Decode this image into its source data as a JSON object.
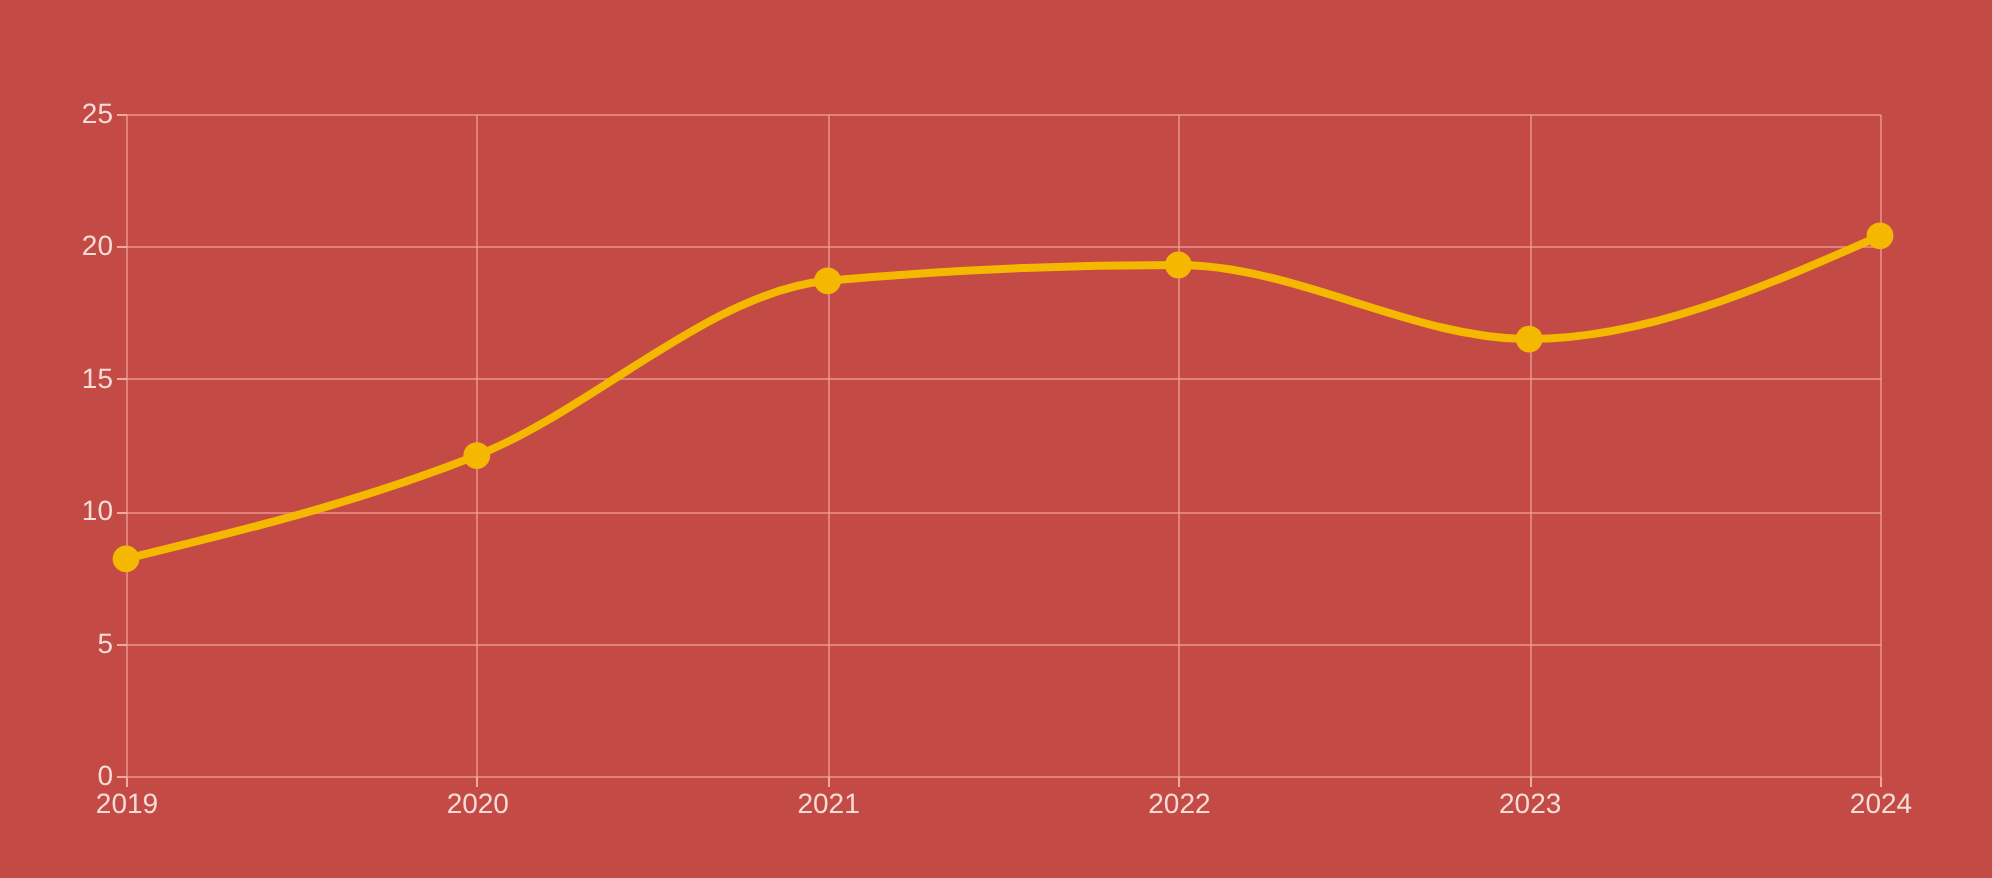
{
  "chart_data": {
    "type": "line",
    "categories": [
      "2019",
      "2020",
      "2021",
      "2022",
      "2023",
      "2024"
    ],
    "series": [
      {
        "color": "#f5b800",
        "values": [
          8.2,
          12.1,
          18.7,
          19.3,
          16.5,
          20.4
        ]
      }
    ],
    "ylim": [
      0,
      25
    ],
    "yticks": [
      0,
      5,
      10,
      15,
      20,
      25
    ],
    "grid": true,
    "marker": "circle",
    "line_style": "solid"
  }
}
